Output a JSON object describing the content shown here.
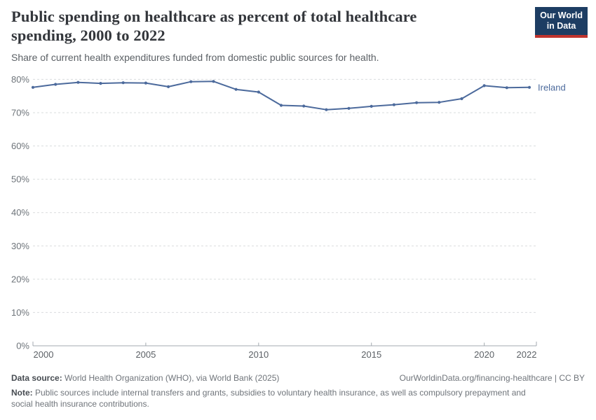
{
  "header": {
    "title": "Public spending on healthcare as percent of total healthcare\nspending, 2000 to 2022",
    "subtitle": "Share of current health expenditures funded from domestic public sources for health.",
    "logo_line1": "Our World",
    "logo_line2": "in Data"
  },
  "chart_data": {
    "type": "line",
    "title": "Public spending on healthcare as percent of total healthcare spending, 2000 to 2022",
    "subtitle": "Share of current health expenditures funded from domestic public sources for health.",
    "x": [
      2000,
      2001,
      2002,
      2003,
      2004,
      2005,
      2006,
      2007,
      2008,
      2009,
      2010,
      2011,
      2012,
      2013,
      2014,
      2015,
      2016,
      2017,
      2018,
      2019,
      2020,
      2021,
      2022
    ],
    "series": [
      {
        "name": "Ireland",
        "color": "#4c6a9c",
        "values": [
          77.6,
          78.5,
          79.1,
          78.8,
          79.0,
          78.9,
          77.8,
          79.3,
          79.4,
          77.0,
          76.2,
          72.2,
          72.0,
          70.9,
          71.3,
          71.9,
          72.4,
          73.0,
          73.1,
          74.2,
          78.1,
          77.5,
          77.6
        ]
      }
    ],
    "end_label": "Ireland",
    "x_ticks": [
      2000,
      2005,
      2010,
      2015,
      2020,
      2022
    ],
    "y_ticks": [
      0,
      10,
      20,
      30,
      40,
      50,
      60,
      70,
      80
    ],
    "y_tick_suffix": "%",
    "xlim": [
      2000,
      2022
    ],
    "ylim": [
      0,
      80
    ],
    "grid": "horizontal-dashed",
    "legend_position": "end-of-line"
  },
  "footer": {
    "data_source_label": "Data source:",
    "data_source_value": " World Health Organization (WHO), via World Bank (2025)",
    "url_text": "OurWorldinData.org/financing-healthcare | CC BY",
    "note_label": "Note:",
    "note_value": " Public sources include internal transfers and grants, subsidies to voluntary health insurance, as well as compulsory prepayment and\nsocial health insurance contributions."
  },
  "colors": {
    "line": "#4c6a9c",
    "brand_navy": "#1d3d63",
    "brand_red": "#c0342e",
    "grid": "#d9dcde",
    "axis": "#a3aab0",
    "title_text": "#33363b",
    "subtitle_text": "#5b6065",
    "footer_text": "#6f747a"
  }
}
